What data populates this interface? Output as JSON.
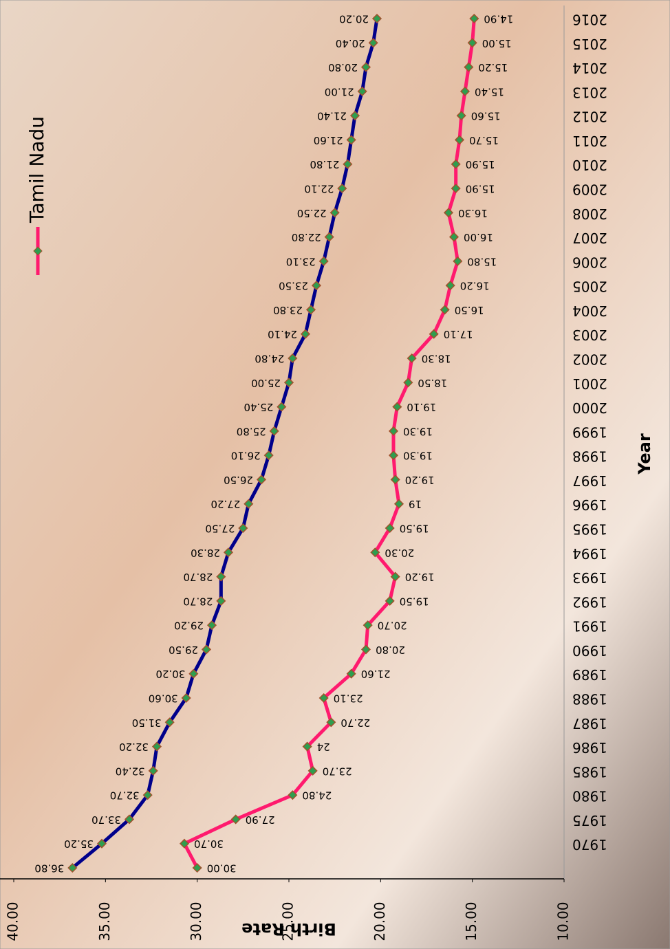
{
  "chart_data": {
    "type": "line",
    "x_label": "Year",
    "y_label": "Birth Rate",
    "categories": [
      null,
      "1970",
      "1975",
      "1980",
      "1985",
      "1986",
      "1987",
      "1988",
      "1989",
      "1990",
      "1991",
      "1992",
      "1993",
      "1994",
      "1995",
      "1996",
      "1997",
      "1998",
      "1999",
      "2000",
      "2001",
      "2002",
      "2003",
      "2004",
      "2005",
      "2006",
      "2007",
      "2008",
      "2009",
      "2010",
      "2011",
      "2012",
      "2013",
      "2014",
      "2015",
      "2016"
    ],
    "series": [
      {
        "color": "#00008b",
        "values": [
          36.8,
          35.2,
          33.7,
          32.7,
          32.4,
          32.2,
          31.5,
          30.6,
          30.2,
          29.5,
          29.2,
          28.7,
          28.7,
          28.3,
          27.5,
          27.2,
          26.5,
          26.1,
          25.8,
          25.4,
          25.0,
          24.8,
          24.1,
          23.8,
          23.5,
          23.1,
          22.8,
          22.5,
          22.1,
          21.8,
          21.6,
          21.4,
          21.0,
          20.8,
          20.4,
          20.2
        ],
        "value_labels": [
          "36.80",
          "35.20",
          "33.70",
          "32.70",
          "32.40",
          "32.20",
          "31.50",
          "30.60",
          "30.20",
          "29.50",
          "29.20",
          "28.70",
          "28.70",
          "28.30",
          "27.50",
          "27.20",
          "26.50",
          "26.10",
          "25.80",
          "25.40",
          "25.00",
          "24.80",
          "24.10",
          "23.80",
          "23.50",
          "23.10",
          "22.80",
          "22.50",
          "22.10",
          "21.80",
          "21.60",
          "21.40",
          "21.00",
          "20.80",
          "20.40",
          "20.20"
        ]
      },
      {
        "name": "Tamil Nadu",
        "color": "#ff1a6e",
        "values": [
          30.0,
          30.7,
          27.9,
          24.8,
          23.7,
          24,
          22.7,
          23.1,
          21.6,
          20.8,
          20.7,
          19.5,
          19.2,
          20.3,
          19.5,
          19,
          19.2,
          19.3,
          19.3,
          19.1,
          18.5,
          18.3,
          17.1,
          16.5,
          16.2,
          15.8,
          16.0,
          16.3,
          15.9,
          15.9,
          15.7,
          15.6,
          15.4,
          15.2,
          15.0,
          14.9
        ],
        "value_labels": [
          "30.00",
          "30.70",
          "27.90",
          "24.80",
          "23.70",
          "24",
          "22.70",
          "23.10",
          "21.60",
          "20.80",
          "20.70",
          "19.50",
          "19.20",
          "20.30",
          "19.50",
          "19",
          "19.20",
          "19.30",
          "19.30",
          "19.10",
          "18.50",
          "18.30",
          "17.10",
          "16.50",
          "16.20",
          "15.80",
          "16.00",
          "16.30",
          "15.90",
          "15.90",
          "15.70",
          "15.60",
          "15.40",
          "15.20",
          "15.00",
          "14.90"
        ]
      }
    ],
    "ylim": [
      10,
      40
    ],
    "yticks": [
      {
        "value": 10,
        "label": "10.00"
      },
      {
        "value": 15,
        "label": "15.00"
      },
      {
        "value": 20,
        "label": "20.00"
      },
      {
        "value": 25,
        "label": "25.00"
      },
      {
        "value": 30,
        "label": "30.00"
      },
      {
        "value": 35,
        "label": "35.00"
      },
      {
        "value": 40,
        "label": "40.00"
      }
    ],
    "legend": "top-right",
    "rotation": -90,
    "grid": false
  }
}
